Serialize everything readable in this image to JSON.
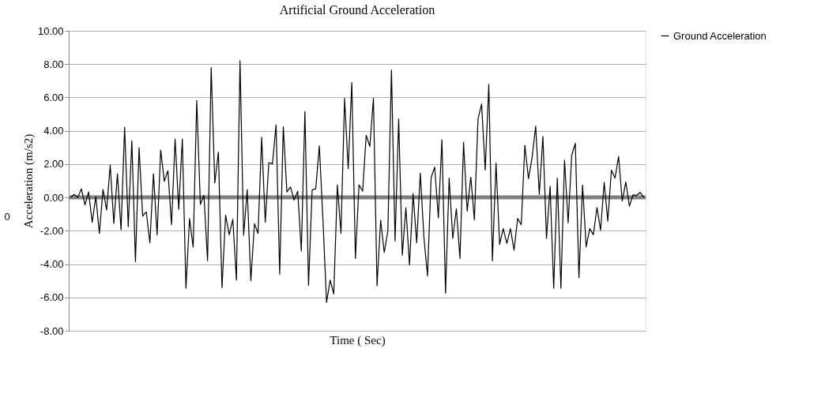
{
  "chart_data": {
    "type": "line",
    "title": "Artificial Ground Acceleration",
    "xlabel": "Time ( Sec)",
    "ylabel": "Acceleration (m/s2)",
    "annotations": [
      "0"
    ],
    "ylim": [
      -8,
      10
    ],
    "yticks": [
      {
        "value": -8,
        "label": "-8.00"
      },
      {
        "value": -6,
        "label": "-6.00"
      },
      {
        "value": -4,
        "label": "-4.00"
      },
      {
        "value": -2,
        "label": "-2.00"
      },
      {
        "value": 0,
        "label": "0.00"
      },
      {
        "value": 2,
        "label": "2.00"
      },
      {
        "value": 4,
        "label": "4.00"
      },
      {
        "value": 6,
        "label": "6.00"
      },
      {
        "value": 8,
        "label": "8.00"
      },
      {
        "value": 10,
        "label": "10.00"
      }
    ],
    "grid": "y",
    "legend": "right",
    "marker": "none",
    "line_style": "solid",
    "ref_lines": [
      {
        "axis": "y",
        "value": 0,
        "color": "#808080"
      }
    ],
    "categories": [
      null,
      null,
      null,
      null,
      null,
      null,
      null,
      null,
      null,
      null,
      null,
      null,
      null,
      null,
      null,
      null,
      null,
      null,
      null,
      null,
      null,
      null,
      null,
      null,
      null,
      null,
      null,
      null,
      null,
      null,
      null,
      null,
      null,
      null,
      null,
      null,
      null,
      null,
      null,
      null,
      null,
      null,
      null,
      null,
      null,
      null,
      null,
      null,
      null,
      null,
      null,
      null,
      null,
      null,
      null,
      null,
      null,
      null,
      null,
      null,
      null,
      null,
      null,
      null,
      null,
      null,
      null,
      null,
      null,
      null,
      null,
      null,
      null,
      null,
      null,
      null,
      null,
      null,
      null,
      null,
      null,
      null,
      null,
      null,
      null,
      null,
      null,
      null,
      null,
      null,
      null,
      null,
      null,
      null,
      null,
      null,
      null,
      null,
      null,
      null,
      null,
      null,
      null,
      null,
      null,
      null,
      null,
      null,
      null,
      null,
      null,
      null,
      null,
      null,
      null,
      null,
      null,
      null,
      null,
      null,
      null,
      null,
      null,
      null,
      null,
      null,
      null,
      null,
      null,
      null,
      null,
      null,
      null,
      null,
      null,
      null,
      null,
      null,
      null,
      null,
      null,
      null,
      null,
      null,
      null,
      null,
      null,
      null,
      null,
      null,
      null,
      null,
      null,
      null,
      null,
      null,
      null,
      null,
      null,
      null
    ],
    "series": [
      {
        "name": "Ground Acceleration",
        "color": "#000000",
        "values": [
          0,
          0.18,
          0,
          0.52,
          -0.45,
          0.33,
          -1.5,
          0.05,
          -2.16,
          0.48,
          -0.75,
          1.94,
          -1.57,
          1.42,
          -1.94,
          4.21,
          -1.76,
          3.4,
          -3.85,
          2.99,
          -1.12,
          -0.87,
          -2.72,
          1.42,
          -2.24,
          2.84,
          0.97,
          1.61,
          -1.64,
          3.51,
          -0.72,
          3.51,
          -5.45,
          -1.27,
          -2.99,
          5.82,
          -0.42,
          0.12,
          -3.8,
          7.79,
          0.87,
          2.72,
          -5.42,
          -1.07,
          -2.24,
          -1.31,
          -4.96,
          8.21,
          -2.27,
          0.48,
          -5.0,
          -1.57,
          -2.16,
          3.61,
          -1.49,
          2.09,
          2.01,
          4.36,
          -4.6,
          4.25,
          0.33,
          0.63,
          -0.15,
          0.37,
          -3.21,
          5.15,
          -5.27,
          0.45,
          0.52,
          3.1,
          -1.34,
          -6.3,
          -4.96,
          -5.79,
          0.75,
          -2.16,
          5.94,
          1.72,
          6.9,
          -3.66,
          0.75,
          0.37,
          3.73,
          3.06,
          5.94,
          -5.3,
          -1.37,
          -3.31,
          -2.01,
          7.64,
          -2.61,
          4.7,
          -3.46,
          -0.63,
          -4.06,
          0.22,
          -2.72,
          1.46,
          -2.39,
          -4.7,
          1.19,
          1.82,
          -1.22,
          3.46,
          -5.75,
          1.16,
          -2.46,
          -0.67,
          -3.66,
          3.31,
          -0.82,
          1.22,
          -1.34,
          4.7,
          5.6,
          1.64,
          6.79,
          -3.81,
          2.06,
          -2.82,
          -1.87,
          -2.76,
          -1.87,
          -3.16,
          -1.27,
          -1.64,
          3.13,
          1.12,
          2.39,
          4.28,
          0.18,
          3.66,
          -2.46,
          0.67,
          -5.45,
          1.16,
          -5.45,
          2.24,
          -1.52,
          2.54,
          3.25,
          -4.81,
          0.75,
          -2.96,
          -1.87,
          -2.24,
          -0.6,
          -1.97,
          0.9,
          -1.42,
          1.64,
          1.16,
          2.46,
          -0.22,
          0.93,
          -0.52,
          0.15,
          0.12,
          0.3,
          0
        ]
      }
    ]
  }
}
